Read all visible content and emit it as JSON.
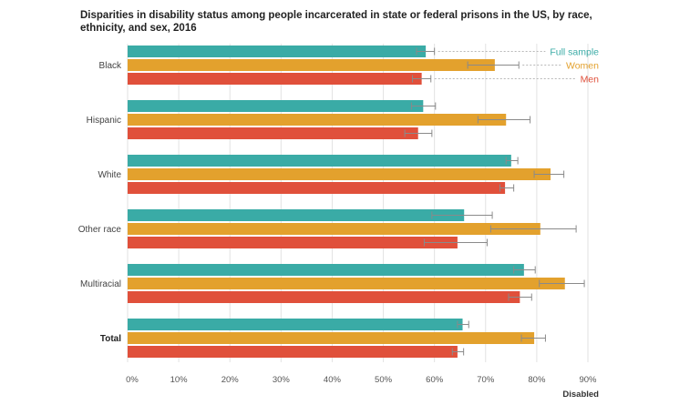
{
  "chart_data": {
    "type": "bar",
    "orientation": "horizontal",
    "title": "Disparities in disability status among people incarcerated in state or federal prisons in the US, by race, ethnicity, and sex, 2016",
    "xlabel": "Disabled",
    "ylabel": "",
    "xlim": [
      0,
      90
    ],
    "x_ticks": [
      0,
      10,
      20,
      30,
      40,
      50,
      60,
      70,
      80,
      90
    ],
    "x_tick_suffix": "%",
    "grid": true,
    "legend_position": "top-right",
    "categories": [
      "Black",
      "Hispanic",
      "White",
      "Other race",
      "Multiracial",
      "Total"
    ],
    "bold_categories": [
      "Total"
    ],
    "series": [
      {
        "name": "Full sample",
        "color": "#3aaba6",
        "values": [
          58.3,
          57.8,
          75.0,
          65.8,
          77.5,
          65.5
        ],
        "error_low": [
          56.5,
          55.5,
          74.0,
          59.5,
          75.5,
          64.5
        ],
        "error_high": [
          60.0,
          60.2,
          76.3,
          71.3,
          79.7,
          66.7
        ]
      },
      {
        "name": "Women",
        "color": "#e3a12d",
        "values": [
          71.8,
          74.0,
          82.7,
          80.7,
          85.5,
          79.5
        ],
        "error_low": [
          66.5,
          68.5,
          79.5,
          71.0,
          80.5,
          77.0
        ],
        "error_high": [
          76.5,
          78.7,
          85.3,
          87.7,
          89.3,
          81.7
        ]
      },
      {
        "name": "Men",
        "color": "#e0503b",
        "values": [
          57.5,
          56.8,
          73.8,
          64.5,
          76.7,
          64.5
        ],
        "error_low": [
          55.7,
          54.2,
          72.8,
          58.0,
          74.5,
          63.5
        ],
        "error_high": [
          59.3,
          59.5,
          75.5,
          70.3,
          79.0,
          65.7
        ]
      }
    ]
  }
}
